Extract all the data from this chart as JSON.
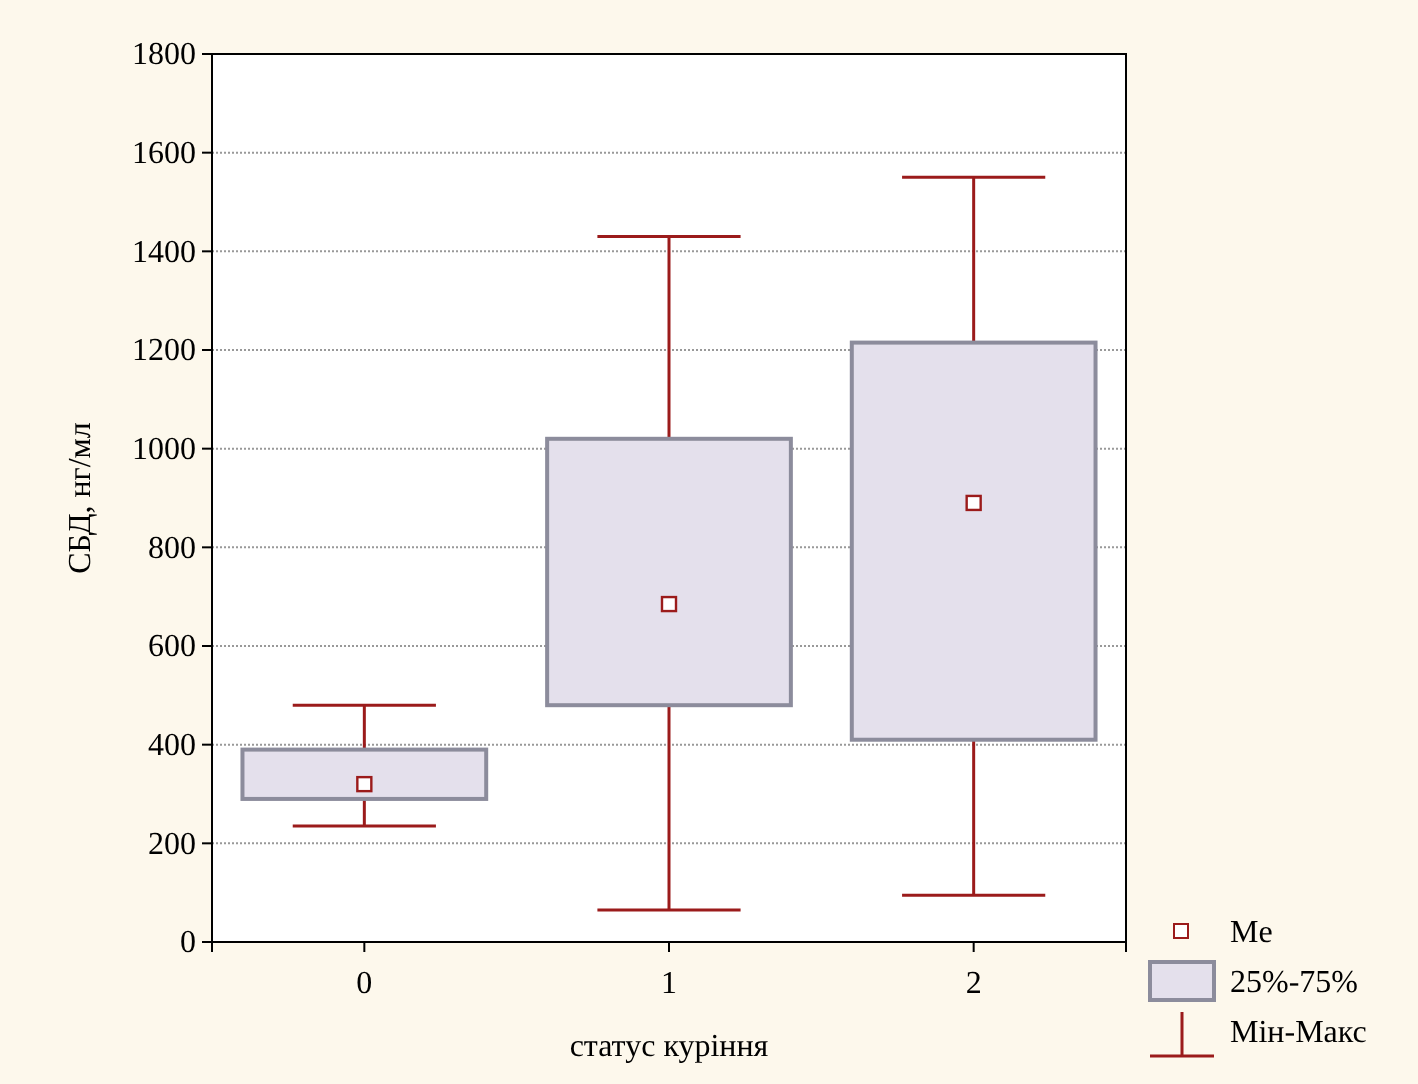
{
  "chart_data": {
    "type": "box",
    "xlabel": "статус куріння",
    "ylabel": "СБД, нг/мл",
    "categories": [
      "0",
      "1",
      "2"
    ],
    "series": [
      {
        "color": "#e4e0ec",
        "boxes": [
          {
            "low": 235,
            "q1": 290,
            "median": 320,
            "q3": 390,
            "high": 480
          },
          {
            "low": 65,
            "q1": 480,
            "median": 685,
            "q3": 1020,
            "high": 1430
          },
          {
            "low": 95,
            "q1": 410,
            "median": 890,
            "q3": 1215,
            "high": 1550
          }
        ]
      }
    ],
    "ylim": [
      0,
      1800
    ],
    "yticks": [
      0,
      200,
      400,
      600,
      800,
      1000,
      1200,
      1400,
      1600,
      1800
    ],
    "grid": "y",
    "annotations": [
      "Me",
      "25%-75%",
      "Мін-Макс"
    ]
  }
}
